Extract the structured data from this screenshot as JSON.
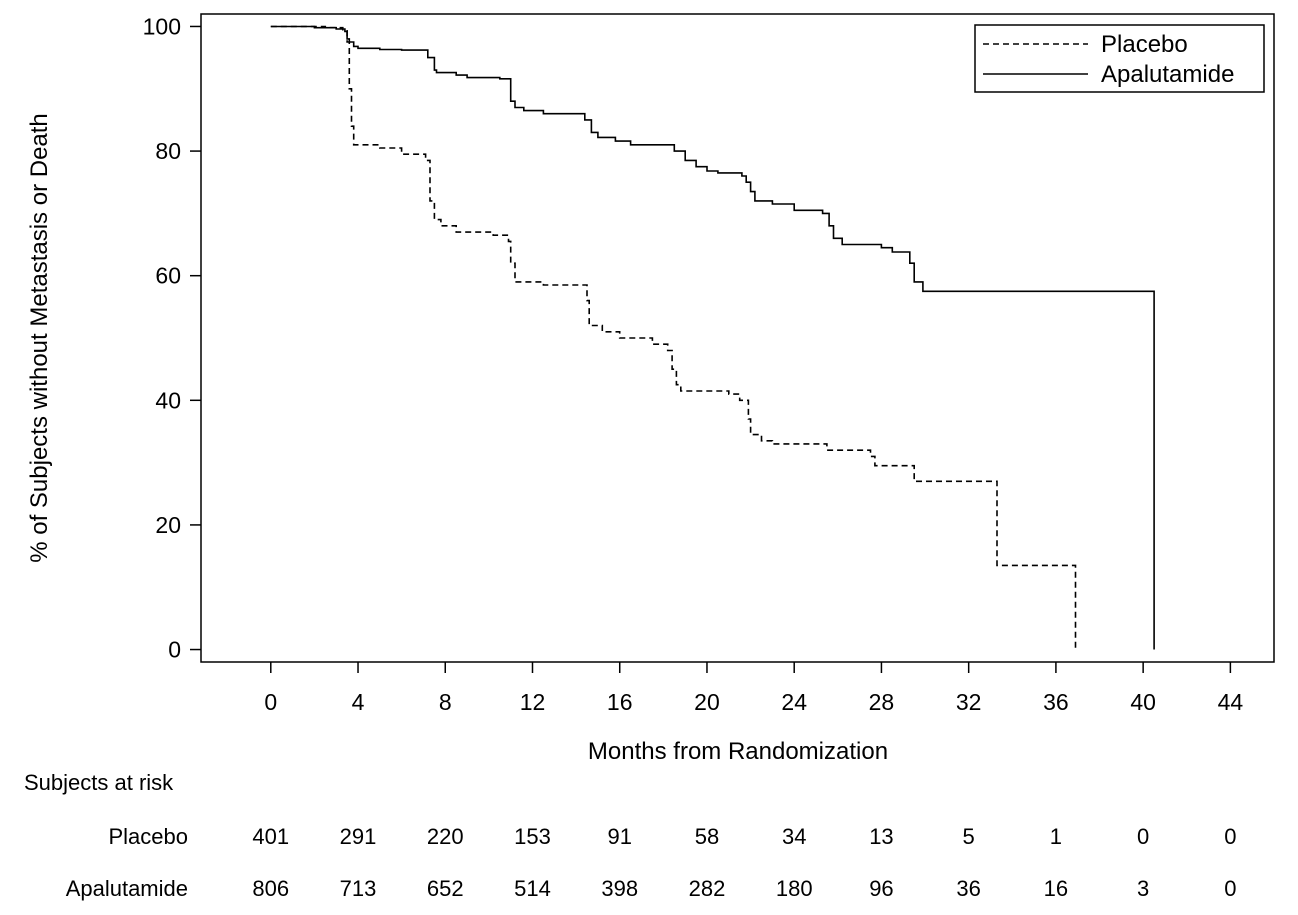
{
  "chart_data": {
    "type": "line",
    "subtype": "kaplan-meier",
    "title": "",
    "xlabel": "Months from Randomization",
    "ylabel": "% of Subjects without Metastasis or Death",
    "xlim": [
      -3.2,
      46
    ],
    "ylim": [
      -2,
      102
    ],
    "xticks": [
      0,
      4,
      8,
      12,
      16,
      20,
      24,
      28,
      32,
      36,
      40,
      44
    ],
    "yticks": [
      0,
      20,
      40,
      60,
      80,
      100
    ],
    "grid": false,
    "legend_position": "top-right",
    "series": [
      {
        "name": "Placebo",
        "style": "dashed",
        "color": "#000000",
        "steps": [
          [
            0,
            100
          ],
          [
            2.5,
            99.8
          ],
          [
            3.3,
            99.3
          ],
          [
            3.5,
            97.5
          ],
          [
            3.6,
            90
          ],
          [
            3.7,
            84
          ],
          [
            3.8,
            81
          ],
          [
            5.0,
            80.5
          ],
          [
            6.0,
            79.5
          ],
          [
            7.1,
            78.5
          ],
          [
            7.3,
            72
          ],
          [
            7.5,
            69
          ],
          [
            7.8,
            68
          ],
          [
            8.5,
            67
          ],
          [
            10.2,
            66.5
          ],
          [
            10.9,
            65.5
          ],
          [
            11.0,
            62
          ],
          [
            11.2,
            59
          ],
          [
            12.5,
            58.5
          ],
          [
            14.5,
            56
          ],
          [
            14.6,
            52
          ],
          [
            15.2,
            51
          ],
          [
            16.0,
            50
          ],
          [
            17.5,
            49
          ],
          [
            18.2,
            48
          ],
          [
            18.4,
            45
          ],
          [
            18.6,
            42.5
          ],
          [
            18.8,
            41.5
          ],
          [
            21.0,
            41
          ],
          [
            21.5,
            40
          ],
          [
            21.9,
            37
          ],
          [
            22.0,
            34.5
          ],
          [
            22.5,
            33.5
          ],
          [
            23.0,
            33
          ],
          [
            25.5,
            32
          ],
          [
            27.5,
            31
          ],
          [
            27.7,
            29.5
          ],
          [
            29.5,
            27
          ],
          [
            33.3,
            13.5
          ],
          [
            36.9,
            0
          ]
        ]
      },
      {
        "name": "Apalutamide",
        "style": "solid",
        "color": "#000000",
        "steps": [
          [
            0,
            100
          ],
          [
            2,
            99.8
          ],
          [
            3,
            99.6
          ],
          [
            3.4,
            99.2
          ],
          [
            3.5,
            98
          ],
          [
            3.6,
            97.5
          ],
          [
            3.8,
            96.8
          ],
          [
            4.0,
            96.5
          ],
          [
            5.0,
            96.3
          ],
          [
            6.0,
            96.2
          ],
          [
            7.2,
            95
          ],
          [
            7.5,
            93
          ],
          [
            7.6,
            92.6
          ],
          [
            8.5,
            92.2
          ],
          [
            9.0,
            91.8
          ],
          [
            10.5,
            91.6
          ],
          [
            11.0,
            88
          ],
          [
            11.2,
            87
          ],
          [
            11.6,
            86.5
          ],
          [
            12.5,
            86
          ],
          [
            14.4,
            85
          ],
          [
            14.7,
            83
          ],
          [
            15.0,
            82.2
          ],
          [
            15.8,
            81.6
          ],
          [
            16.5,
            81
          ],
          [
            18.5,
            80
          ],
          [
            19.0,
            78.5
          ],
          [
            19.5,
            77.5
          ],
          [
            20.0,
            76.8
          ],
          [
            20.5,
            76.5
          ],
          [
            21.6,
            76
          ],
          [
            21.8,
            75
          ],
          [
            22.0,
            73.5
          ],
          [
            22.2,
            72
          ],
          [
            23.0,
            71.5
          ],
          [
            24.0,
            70.5
          ],
          [
            25.3,
            70
          ],
          [
            25.6,
            68
          ],
          [
            25.8,
            66
          ],
          [
            26.2,
            65
          ],
          [
            28.0,
            64.5
          ],
          [
            28.5,
            63.8
          ],
          [
            29.3,
            62
          ],
          [
            29.5,
            59
          ],
          [
            29.9,
            57.5
          ],
          [
            40.5,
            0
          ]
        ]
      }
    ],
    "risk_table": {
      "title": "Subjects at risk",
      "x": [
        0,
        4,
        8,
        12,
        16,
        20,
        24,
        28,
        32,
        36,
        40,
        44
      ],
      "rows": [
        {
          "name": "Placebo",
          "values": [
            "401",
            "291",
            "220",
            "153",
            "91",
            "58",
            "34",
            "13",
            "5",
            "1",
            "0",
            "0"
          ]
        },
        {
          "name": "Apalutamide",
          "values": [
            "806",
            "713",
            "652",
            "514",
            "398",
            "282",
            "180",
            "96",
            "36",
            "16",
            "3",
            "0"
          ]
        }
      ]
    }
  }
}
